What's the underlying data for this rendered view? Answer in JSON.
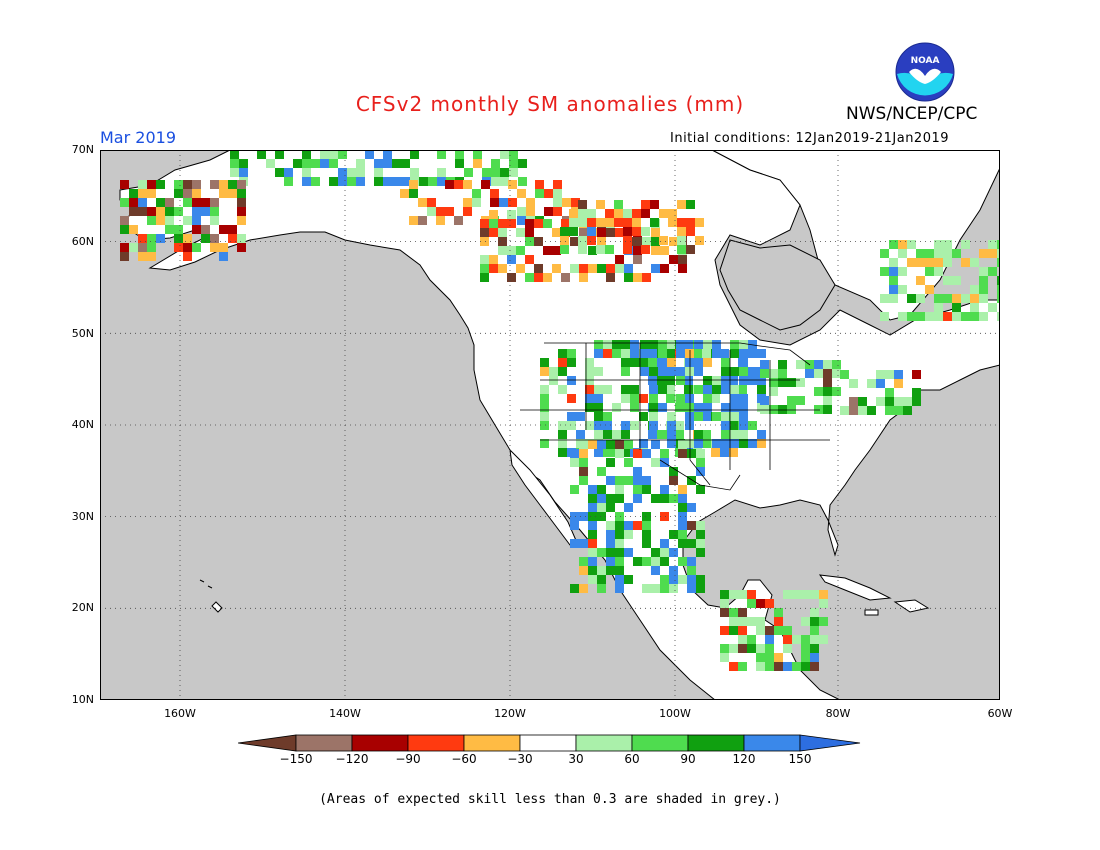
{
  "header": {
    "title": "CFSv2 monthly SM anomalies (mm)",
    "agency": "NWS/NCEP/CPC",
    "logo_text": "NOAA",
    "valid_month": "Mar 2019",
    "initial_conditions": "Initial conditions: 12Jan2019-21Jan2019"
  },
  "axes": {
    "lat_labels": [
      "70N",
      "60N",
      "50N",
      "40N",
      "30N",
      "20N",
      "10N"
    ],
    "lon_labels": [
      "160W",
      "140W",
      "120W",
      "100W",
      "80W",
      "60W"
    ]
  },
  "colorbar": {
    "labels": [
      "−150",
      "−120",
      "−90",
      "−60",
      "−30",
      "30",
      "60",
      "90",
      "120",
      "150"
    ],
    "colors": [
      "#6e3b2a",
      "#9c7468",
      "#a80000",
      "#ff3a10",
      "#ffbb44",
      "#ffffff",
      "#aaf0aa",
      "#4fdc4f",
      "#10a010",
      "#3a88ea",
      "#2d6ee0"
    ]
  },
  "map_colors": {
    "ocean": "#c8c8c8",
    "land_default": "#ffffff",
    "low_skill_grey": "#c8c8c8"
  },
  "footnote": "(Areas of expected skill less than 0.3 are shaded in grey.)"
}
